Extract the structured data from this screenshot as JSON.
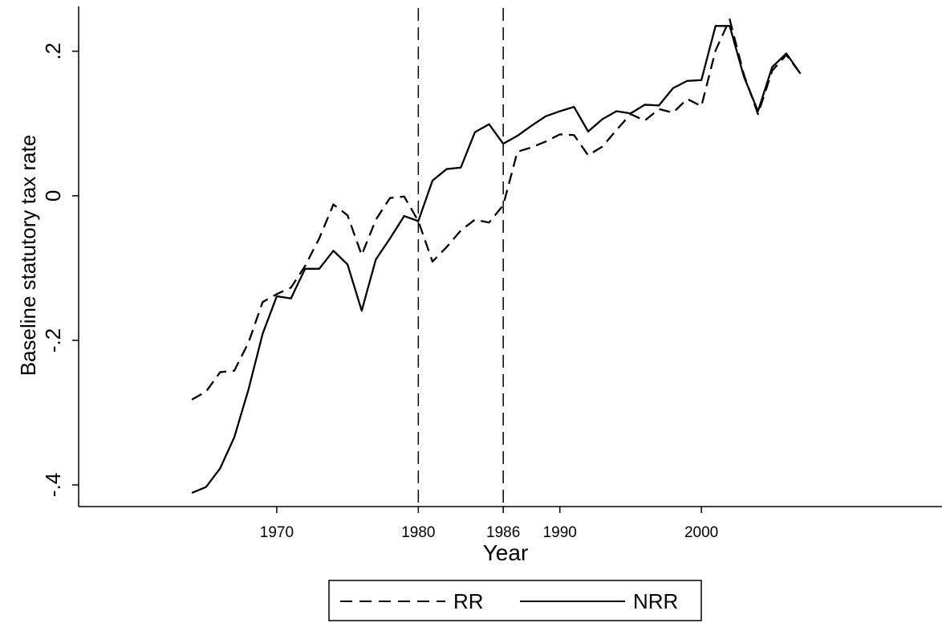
{
  "chart_data": {
    "type": "line",
    "xlabel": "Year",
    "ylabel": "Baseline statutory tax rate",
    "xlim": [
      1956,
      2017
    ],
    "ylim": [
      -0.43,
      0.262
    ],
    "x_ticks": [
      {
        "value": 1970,
        "label": "1970"
      },
      {
        "value": 1980,
        "label": "1980"
      },
      {
        "value": 1986,
        "label": "1986"
      },
      {
        "value": 1990,
        "label": "1990"
      },
      {
        "value": 2000,
        "label": "2000"
      }
    ],
    "y_ticks": [
      {
        "value": -0.4,
        "label": "-.4"
      },
      {
        "value": -0.2,
        "label": "-.2"
      },
      {
        "value": 0,
        "label": "0"
      },
      {
        "value": 0.2,
        "label": ".2"
      }
    ],
    "vertical_reference_lines": [
      1980,
      1986
    ],
    "grid": false,
    "legend_position": "bottom-center",
    "x": [
      1964,
      1965,
      1966,
      1967,
      1968,
      1969,
      1970,
      1971,
      1972,
      1973,
      1974,
      1975,
      1976,
      1977,
      1978,
      1979,
      1980,
      1981,
      1982,
      1983,
      1984,
      1985,
      1986,
      1987,
      1988,
      1989,
      1990,
      1991,
      1992,
      1993,
      1994,
      1995,
      1996,
      1997,
      1998,
      1999,
      2000,
      2001,
      2002,
      2003,
      2004,
      2005,
      2006,
      2007
    ],
    "series": [
      {
        "name": "RR",
        "style": "dashed",
        "color": "#000000",
        "values": [
          -0.282,
          -0.271,
          -0.244,
          -0.242,
          -0.203,
          -0.147,
          -0.136,
          -0.127,
          -0.097,
          -0.059,
          -0.012,
          -0.027,
          -0.082,
          -0.033,
          -0.003,
          -0.001,
          -0.035,
          -0.091,
          -0.071,
          -0.048,
          -0.033,
          -0.037,
          -0.013,
          0.061,
          0.067,
          0.075,
          0.085,
          0.084,
          0.056,
          0.068,
          0.091,
          0.113,
          0.104,
          0.12,
          0.115,
          0.134,
          0.124,
          0.201,
          0.244,
          0.168,
          0.113,
          0.173,
          0.195,
          0.169
        ]
      },
      {
        "name": "NRR",
        "style": "solid",
        "color": "#000000",
        "values": [
          -0.411,
          -0.403,
          -0.377,
          -0.334,
          -0.268,
          -0.191,
          -0.139,
          -0.142,
          -0.101,
          -0.101,
          -0.076,
          -0.095,
          -0.159,
          -0.088,
          -0.059,
          -0.028,
          -0.035,
          0.021,
          0.037,
          0.039,
          0.088,
          0.099,
          0.072,
          0.083,
          0.097,
          0.11,
          0.117,
          0.123,
          0.089,
          0.106,
          0.117,
          0.114,
          0.126,
          0.125,
          0.149,
          0.159,
          0.16,
          0.235,
          0.235,
          0.165,
          0.117,
          0.178,
          0.197,
          0.169
        ]
      }
    ]
  }
}
